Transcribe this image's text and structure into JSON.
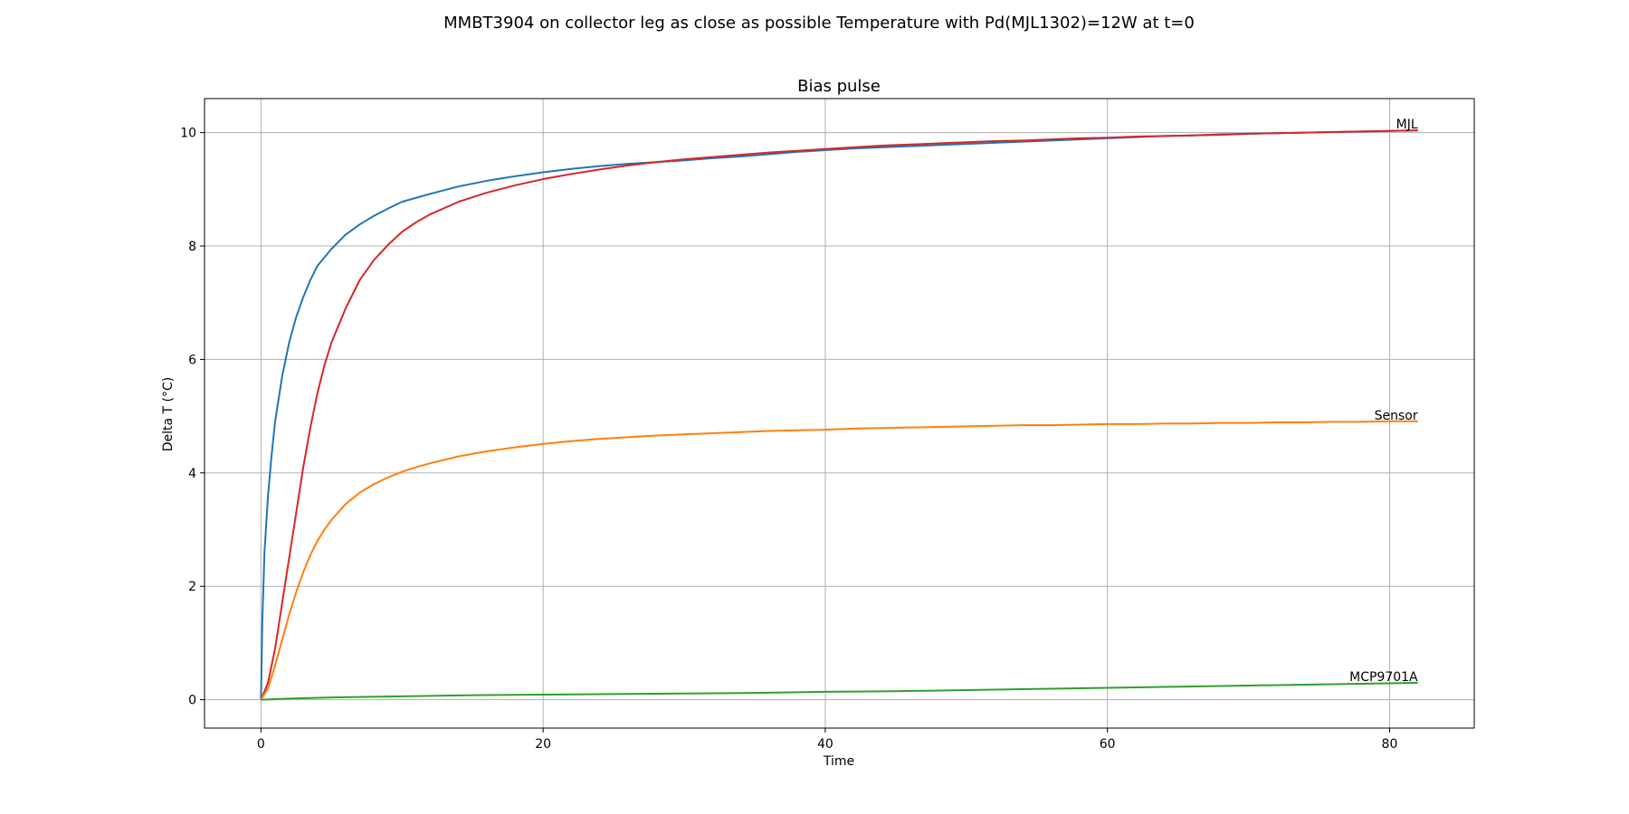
{
  "chart_data": {
    "type": "line",
    "suptitle": "MMBT3904 on collector leg as close as possible Temperature with Pd(MJL1302)=12W at t=0",
    "title": "Bias pulse",
    "xlabel": "Time",
    "ylabel": "Delta T (°C)",
    "xlim": [
      -4,
      86
    ],
    "ylim": [
      -0.5,
      10.6
    ],
    "xticks": [
      0,
      20,
      40,
      60,
      80
    ],
    "yticks": [
      0,
      2,
      4,
      6,
      8,
      10
    ],
    "grid": true,
    "legend": "none",
    "series": [
      {
        "color": "#1f77b4",
        "x": [
          0,
          0.1,
          0.25,
          0.5,
          0.75,
          1,
          1.5,
          2,
          2.5,
          3,
          3.5,
          4,
          5,
          6,
          7,
          8,
          9,
          10,
          12,
          14,
          16,
          18,
          20,
          22,
          24,
          26,
          28,
          30,
          32,
          34,
          36,
          38,
          40,
          42,
          44,
          46,
          48,
          50,
          52,
          54,
          56,
          58,
          60,
          62,
          64,
          66,
          68,
          70,
          72,
          74,
          76,
          78,
          80,
          82
        ],
        "y": [
          0,
          1.4,
          2.6,
          3.6,
          4.3,
          4.9,
          5.7,
          6.3,
          6.75,
          7.1,
          7.4,
          7.65,
          7.95,
          8.2,
          8.38,
          8.53,
          8.66,
          8.78,
          8.92,
          9.05,
          9.15,
          9.23,
          9.3,
          9.36,
          9.41,
          9.45,
          9.48,
          9.51,
          9.55,
          9.58,
          9.62,
          9.66,
          9.69,
          9.72,
          9.74,
          9.76,
          9.78,
          9.8,
          9.82,
          9.84,
          9.86,
          9.88,
          9.9,
          9.92,
          9.94,
          9.95,
          9.96,
          9.98,
          9.99,
          10.0,
          10.01,
          10.02,
          10.03,
          10.04
        ]
      },
      {
        "color": "#d62728",
        "x": [
          0,
          0.5,
          1,
          1.5,
          2,
          2.5,
          3,
          3.5,
          4,
          4.5,
          5,
          6,
          7,
          8,
          9,
          10,
          11,
          12,
          14,
          16,
          18,
          20,
          22,
          24,
          26,
          28,
          30,
          32,
          34,
          36,
          38,
          40,
          42,
          44,
          46,
          48,
          50,
          52,
          54,
          56,
          58,
          60,
          62,
          64,
          66,
          68,
          70,
          72,
          74,
          76,
          78,
          80,
          82
        ],
        "y": [
          0,
          0.3,
          0.9,
          1.7,
          2.5,
          3.3,
          4.1,
          4.8,
          5.4,
          5.9,
          6.3,
          6.9,
          7.4,
          7.75,
          8.02,
          8.25,
          8.42,
          8.56,
          8.78,
          8.94,
          9.07,
          9.18,
          9.27,
          9.35,
          9.42,
          9.48,
          9.53,
          9.57,
          9.61,
          9.65,
          9.68,
          9.71,
          9.74,
          9.77,
          9.79,
          9.81,
          9.83,
          9.85,
          9.86,
          9.88,
          9.9,
          9.91,
          9.93,
          9.94,
          9.95,
          9.97,
          9.98,
          9.99,
          10.0,
          10.01,
          10.02,
          10.03,
          10.04
        ]
      },
      {
        "color": "#ff7f0e",
        "x": [
          0,
          0.5,
          1,
          1.5,
          2,
          2.5,
          3,
          3.5,
          4,
          4.5,
          5,
          6,
          7,
          8,
          9,
          10,
          11,
          12,
          14,
          16,
          18,
          20,
          22,
          24,
          26,
          28,
          30,
          32,
          34,
          36,
          38,
          40,
          42,
          44,
          46,
          48,
          50,
          52,
          54,
          56,
          58,
          60,
          62,
          64,
          66,
          68,
          70,
          72,
          74,
          76,
          78,
          80,
          82
        ],
        "y": [
          0,
          0.2,
          0.6,
          1.05,
          1.5,
          1.9,
          2.25,
          2.55,
          2.8,
          3.0,
          3.17,
          3.45,
          3.65,
          3.8,
          3.92,
          4.02,
          4.1,
          4.17,
          4.29,
          4.38,
          4.45,
          4.51,
          4.56,
          4.6,
          4.63,
          4.66,
          4.68,
          4.7,
          4.72,
          4.74,
          4.75,
          4.76,
          4.78,
          4.79,
          4.8,
          4.81,
          4.82,
          4.83,
          4.84,
          4.84,
          4.85,
          4.86,
          4.86,
          4.87,
          4.87,
          4.88,
          4.88,
          4.89,
          4.89,
          4.9,
          4.9,
          4.91,
          4.91
        ]
      },
      {
        "color": "#2ca02c",
        "x": [
          0,
          2,
          5,
          10,
          15,
          20,
          25,
          30,
          35,
          40,
          45,
          50,
          55,
          60,
          65,
          70,
          75,
          80,
          82
        ],
        "y": [
          0,
          0.02,
          0.04,
          0.06,
          0.08,
          0.09,
          0.1,
          0.11,
          0.12,
          0.14,
          0.15,
          0.17,
          0.19,
          0.21,
          0.23,
          0.25,
          0.27,
          0.29,
          0.3
        ]
      }
    ],
    "annotations": [
      {
        "text": "MJL",
        "x": 82,
        "y": 10.04
      },
      {
        "text": "Sensor",
        "x": 82,
        "y": 4.91
      },
      {
        "text": "MCP9701A",
        "x": 82,
        "y": 0.3
      }
    ]
  }
}
